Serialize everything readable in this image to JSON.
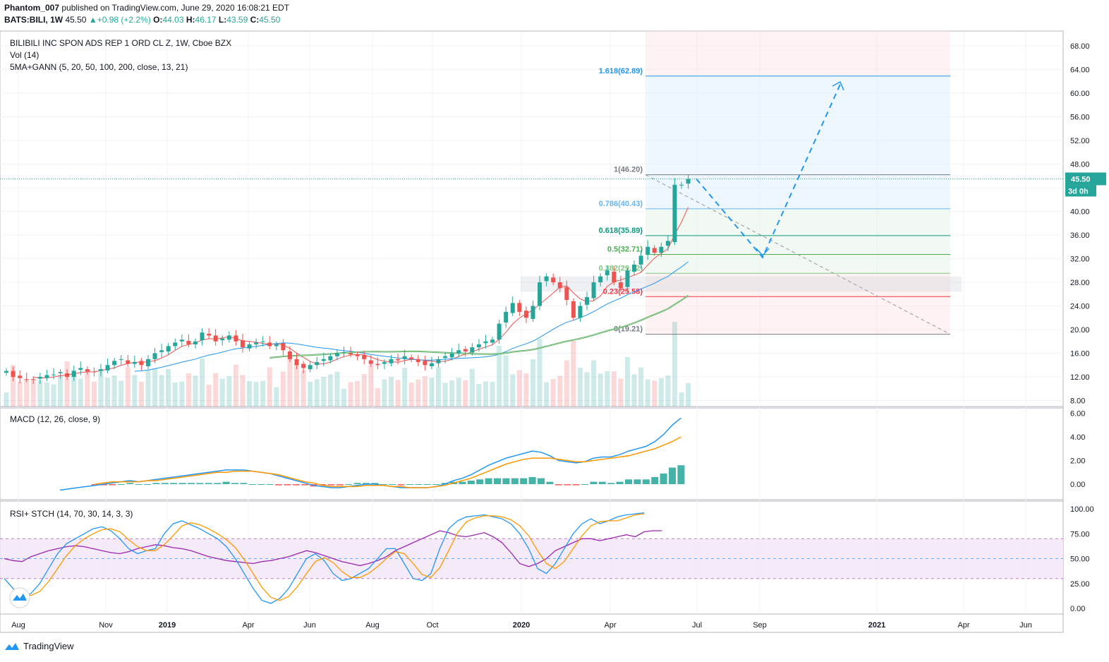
{
  "header": {
    "author": "Phantom_007",
    "published_text": "published on TradingView.com, June 29, 2020 16:08:21 EDT",
    "symbol": "BATS:BILI, 1W",
    "last": "45.50",
    "change": "+0.98 (+2.2%)",
    "o_label": "O:",
    "o_val": "44.03",
    "h_label": "H:",
    "h_val": "46.17",
    "l_label": "L:",
    "l_val": "43.59",
    "c_label": "C:",
    "c_val": "45.50"
  },
  "legend": {
    "main_title": "BILIBILI INC SPON ADS REP 1 ORD CL Z, 1W, Cboe BZX",
    "vol": "Vol (14)",
    "ma": "5MA+GANN (5, 20, 50, 100, 200, close, 13, 21)",
    "macd": "MACD (12, 26, close, 9)",
    "rsi": "RSI+ STCH (14, 70, 30, 14, 3, 3)"
  },
  "price_badge": {
    "value": "45.50",
    "countdown": "3d 0h",
    "color": "#26a69a"
  },
  "colors": {
    "up": "#26a69a",
    "down": "#ef5350",
    "macd": "#2196f3",
    "signal": "#ff9800",
    "rsi": "#9c27b0"
  },
  "footer": {
    "brand": "TradingView"
  },
  "chart_data": [
    {
      "type": "candlestick",
      "title": "BILIBILI INC SPON ADS REP 1 ORD CL Z, 1W, Cboe BZX",
      "y_ticks": [
        "68.00",
        "64.00",
        "60.00",
        "56.00",
        "52.00",
        "48.00",
        "44.00",
        "40.00",
        "36.00",
        "32.00",
        "28.00",
        "24.00",
        "20.00",
        "16.00",
        "12.00",
        "8.00"
      ],
      "ylim": [
        6,
        70
      ],
      "x_ticks": [
        "Aug",
        "Nov",
        "2019",
        "Apr",
        "Jun",
        "Aug",
        "Oct",
        "2020",
        "Apr",
        "Jul",
        "Sep",
        "2021",
        "Apr",
        "Jun"
      ],
      "closes": [
        13.0,
        12.0,
        11.8,
        11.6,
        11.5,
        12.0,
        12.3,
        12.4,
        12.8,
        12.0,
        13.0,
        13.5,
        12.9,
        12.8,
        13.3,
        14.0,
        14.7,
        15.0,
        14.2,
        14.5,
        14.0,
        15.0,
        16.0,
        16.5,
        17.2,
        17.8,
        18.3,
        17.5,
        18.0,
        19.5,
        19.0,
        18.0,
        18.5,
        19.0,
        18.0,
        17.0,
        17.5,
        17.8,
        18.0,
        17.2,
        17.5,
        16.5,
        15.0,
        14.0,
        13.5,
        14.0,
        14.5,
        15.0,
        15.5,
        16.0,
        16.2,
        15.8,
        15.5,
        15.0,
        14.2,
        14.0,
        14.5,
        15.0,
        14.8,
        15.5,
        15.0,
        14.5,
        14.0,
        14.3,
        15.0,
        15.5,
        16.0,
        16.5,
        16.3,
        17.0,
        17.5,
        18.0,
        18.3,
        21.0,
        23.0,
        24.5,
        23.0,
        22.0,
        24.0,
        28.0,
        29.0,
        28.0,
        27.0,
        25.0,
        22.0,
        24.0,
        25.5,
        28.0,
        29.0,
        30.0,
        28.0,
        27.0,
        30.0,
        31.0,
        32.5,
        34.0,
        33.0,
        34.0,
        35.0,
        44.5,
        44.5,
        45.5
      ],
      "volume_axis": "8.00-20.00 shared pane",
      "fibonacci": [
        {
          "level": "1.618",
          "price": 62.89,
          "label": "1.618(62.89)",
          "color": "#2196f3"
        },
        {
          "level": "1",
          "price": 46.2,
          "label": "1(46.20)",
          "color": "#787b86"
        },
        {
          "level": "0.786",
          "price": 40.43,
          "label": "0.786(40.43)",
          "color": "#64b5f6"
        },
        {
          "level": "0.618",
          "price": 35.89,
          "label": "0.618(35.89)",
          "color": "#089981"
        },
        {
          "level": "0.5",
          "price": 32.71,
          "label": "0.5(32.71)",
          "color": "#4caf50"
        },
        {
          "level": "0.382",
          "price": 29.52,
          "label": "0.382(29.52)",
          "color": "#81c784"
        },
        {
          "level": "0.236",
          "price": 25.58,
          "label": "0.23(25.58)",
          "color": "#f23645"
        },
        {
          "level": "0",
          "price": 19.21,
          "label": "0(19.21)",
          "color": "#787b86"
        }
      ],
      "projection_path": [
        [
          45.5,
          "2020-06-29"
        ],
        [
          32.2,
          "2020-09-01"
        ],
        [
          61.5,
          "2020-12-01"
        ]
      ]
    },
    {
      "type": "line",
      "title": "MACD (12, 26, close, 9)",
      "y_ticks": [
        "6.00",
        "4.00",
        "2.00",
        "0.00"
      ],
      "ylim": [
        -0.8,
        6.3
      ],
      "series": [
        {
          "name": "MACD",
          "values": [
            -0.5,
            -0.4,
            -0.3,
            -0.2,
            -0.1,
            0.0,
            0.1,
            0.2,
            0.3,
            0.2,
            0.3,
            0.4,
            0.5,
            0.6,
            0.7,
            0.8,
            0.9,
            1.0,
            1.1,
            1.2,
            1.2,
            1.2,
            1.1,
            1.0,
            0.9,
            0.7,
            0.5,
            0.3,
            0.1,
            -0.1,
            -0.2,
            -0.3,
            -0.3,
            -0.2,
            -0.1,
            0.0,
            0.0,
            -0.1,
            -0.2,
            -0.3,
            -0.3,
            -0.3,
            -0.3,
            -0.2,
            0.0,
            0.3,
            0.5,
            0.8,
            1.2,
            1.6,
            1.9,
            2.2,
            2.4,
            2.6,
            2.8,
            2.7,
            2.4,
            2.0,
            1.9,
            1.8,
            1.9,
            2.2,
            2.3,
            2.3,
            2.5,
            2.8,
            3.0,
            3.2,
            3.6,
            4.2,
            5.0,
            5.6
          ]
        },
        {
          "name": "Signal",
          "values": [
            null,
            null,
            null,
            null,
            0.0,
            0.1,
            0.2,
            0.2,
            0.2,
            0.2,
            0.3,
            0.3,
            0.4,
            0.5,
            0.6,
            0.7,
            0.8,
            0.9,
            1.0,
            1.0,
            1.1,
            1.1,
            1.1,
            1.0,
            0.9,
            0.8,
            0.6,
            0.4,
            0.2,
            0.1,
            -0.1,
            -0.2,
            -0.2,
            -0.2,
            -0.2,
            -0.1,
            -0.1,
            -0.1,
            -0.2,
            -0.2,
            -0.3,
            -0.3,
            -0.3,
            -0.2,
            -0.1,
            0.1,
            0.3,
            0.5,
            0.8,
            1.1,
            1.4,
            1.7,
            1.9,
            2.1,
            2.2,
            2.2,
            2.2,
            2.1,
            2.0,
            1.9,
            1.9,
            2.0,
            2.1,
            2.2,
            2.3,
            2.4,
            2.6,
            2.8,
            3.0,
            3.3,
            3.6,
            4.0
          ]
        }
      ]
    },
    {
      "type": "line",
      "title": "RSI+ STCH (14, 70, 30, 14, 3, 3)",
      "y_ticks": [
        "100.00",
        "75.00",
        "50.00",
        "25.00",
        "0.00"
      ],
      "ylim": [
        0,
        100
      ],
      "band": [
        30,
        70
      ],
      "series": [
        {
          "name": "RSI",
          "values": [
            50,
            48,
            47,
            52,
            55,
            58,
            60,
            62,
            63,
            62,
            60,
            58,
            56,
            55,
            57,
            60,
            62,
            64,
            63,
            61,
            60,
            58,
            55,
            52,
            50,
            48,
            47,
            46,
            45,
            47,
            48,
            50,
            52,
            55,
            58,
            56,
            53,
            50,
            47,
            45,
            43,
            45,
            48,
            52,
            58,
            62,
            66,
            70,
            74,
            78,
            76,
            73,
            72,
            74,
            76,
            72,
            66,
            56,
            45,
            42,
            45,
            50,
            58,
            62,
            66,
            70,
            70,
            68,
            70,
            72,
            74,
            72,
            77,
            78,
            78
          ]
        },
        {
          "name": "Stoch K",
          "values": [
            30,
            20,
            10,
            15,
            25,
            40,
            55,
            65,
            70,
            75,
            80,
            82,
            78,
            70,
            60,
            55,
            58,
            60,
            75,
            85,
            88,
            84,
            80,
            75,
            70,
            62,
            50,
            35,
            20,
            8,
            5,
            10,
            20,
            35,
            50,
            55,
            48,
            35,
            28,
            30,
            35,
            40,
            50,
            60,
            60,
            45,
            30,
            28,
            35,
            60,
            80,
            88,
            92,
            93,
            94,
            92,
            90,
            85,
            75,
            60,
            40,
            35,
            45,
            60,
            75,
            85,
            90,
            85,
            88,
            92,
            94,
            95,
            96
          ]
        },
        {
          "name": "Stoch D",
          "values": [
            null,
            null,
            15,
            13,
            17,
            27,
            40,
            53,
            63,
            70,
            75,
            79,
            80,
            77,
            69,
            62,
            58,
            58,
            64,
            73,
            83,
            86,
            84,
            80,
            75,
            69,
            61,
            49,
            35,
            21,
            11,
            8,
            12,
            22,
            35,
            47,
            51,
            46,
            37,
            31,
            31,
            35,
            42,
            50,
            57,
            55,
            45,
            34,
            31,
            41,
            58,
            76,
            87,
            91,
            93,
            93,
            92,
            89,
            83,
            73,
            58,
            45,
            40,
            47,
            60,
            73,
            83,
            87,
            88,
            88,
            91,
            94,
            95
          ]
        }
      ]
    }
  ]
}
